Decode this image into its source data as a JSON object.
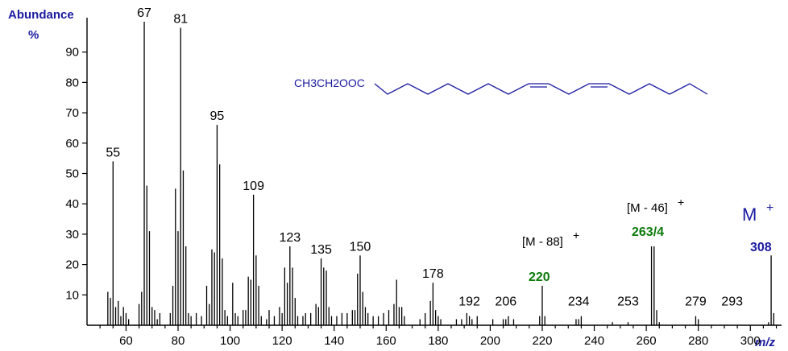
{
  "chart_data": {
    "type": "bar",
    "ylabel_line1": "Abundance",
    "ylabel_line2": "%",
    "xlabel": "m/z",
    "xlim": [
      45,
      312
    ],
    "ylim": [
      0,
      100
    ],
    "x_ticks": [
      60,
      80,
      100,
      120,
      140,
      160,
      180,
      200,
      220,
      240,
      260,
      280,
      300
    ],
    "y_ticks": [
      10,
      20,
      30,
      40,
      50,
      60,
      70,
      80,
      90
    ],
    "peaks": [
      {
        "mz": 53,
        "y": 11
      },
      {
        "mz": 54,
        "y": 9
      },
      {
        "mz": 55,
        "y": 54
      },
      {
        "mz": 56,
        "y": 6
      },
      {
        "mz": 57,
        "y": 8
      },
      {
        "mz": 58,
        "y": 3
      },
      {
        "mz": 59,
        "y": 6
      },
      {
        "mz": 60,
        "y": 4
      },
      {
        "mz": 61,
        "y": 2
      },
      {
        "mz": 65,
        "y": 7
      },
      {
        "mz": 66,
        "y": 11
      },
      {
        "mz": 67,
        "y": 100
      },
      {
        "mz": 68,
        "y": 46
      },
      {
        "mz": 69,
        "y": 31
      },
      {
        "mz": 70,
        "y": 6
      },
      {
        "mz": 71,
        "y": 5
      },
      {
        "mz": 72,
        "y": 2
      },
      {
        "mz": 73,
        "y": 4
      },
      {
        "mz": 77,
        "y": 4
      },
      {
        "mz": 78,
        "y": 13
      },
      {
        "mz": 79,
        "y": 45
      },
      {
        "mz": 80,
        "y": 31
      },
      {
        "mz": 81,
        "y": 98
      },
      {
        "mz": 82,
        "y": 51
      },
      {
        "mz": 83,
        "y": 26
      },
      {
        "mz": 84,
        "y": 4
      },
      {
        "mz": 85,
        "y": 3
      },
      {
        "mz": 87,
        "y": 4
      },
      {
        "mz": 89,
        "y": 3
      },
      {
        "mz": 91,
        "y": 13
      },
      {
        "mz": 92,
        "y": 7
      },
      {
        "mz": 93,
        "y": 25
      },
      {
        "mz": 94,
        "y": 24
      },
      {
        "mz": 95,
        "y": 66
      },
      {
        "mz": 96,
        "y": 53
      },
      {
        "mz": 97,
        "y": 22
      },
      {
        "mz": 98,
        "y": 5
      },
      {
        "mz": 99,
        "y": 3
      },
      {
        "mz": 101,
        "y": 14
      },
      {
        "mz": 102,
        "y": 4
      },
      {
        "mz": 103,
        "y": 3
      },
      {
        "mz": 105,
        "y": 5
      },
      {
        "mz": 106,
        "y": 5
      },
      {
        "mz": 107,
        "y": 16
      },
      {
        "mz": 108,
        "y": 15
      },
      {
        "mz": 109,
        "y": 43
      },
      {
        "mz": 110,
        "y": 23
      },
      {
        "mz": 111,
        "y": 13
      },
      {
        "mz": 112,
        "y": 3
      },
      {
        "mz": 114,
        "y": 2
      },
      {
        "mz": 115,
        "y": 5
      },
      {
        "mz": 117,
        "y": 3
      },
      {
        "mz": 119,
        "y": 6
      },
      {
        "mz": 120,
        "y": 4
      },
      {
        "mz": 121,
        "y": 19
      },
      {
        "mz": 122,
        "y": 14
      },
      {
        "mz": 123,
        "y": 26
      },
      {
        "mz": 124,
        "y": 19
      },
      {
        "mz": 125,
        "y": 9
      },
      {
        "mz": 126,
        "y": 3
      },
      {
        "mz": 128,
        "y": 3
      },
      {
        "mz": 129,
        "y": 4
      },
      {
        "mz": 131,
        "y": 4
      },
      {
        "mz": 133,
        "y": 7
      },
      {
        "mz": 134,
        "y": 6
      },
      {
        "mz": 135,
        "y": 22
      },
      {
        "mz": 136,
        "y": 19
      },
      {
        "mz": 137,
        "y": 18
      },
      {
        "mz": 138,
        "y": 6
      },
      {
        "mz": 139,
        "y": 3
      },
      {
        "mz": 141,
        "y": 3
      },
      {
        "mz": 143,
        "y": 4
      },
      {
        "mz": 145,
        "y": 4
      },
      {
        "mz": 147,
        "y": 5
      },
      {
        "mz": 148,
        "y": 5
      },
      {
        "mz": 149,
        "y": 17
      },
      {
        "mz": 150,
        "y": 23
      },
      {
        "mz": 151,
        "y": 11
      },
      {
        "mz": 152,
        "y": 6
      },
      {
        "mz": 153,
        "y": 4
      },
      {
        "mz": 155,
        "y": 3
      },
      {
        "mz": 157,
        "y": 3
      },
      {
        "mz": 159,
        "y": 4
      },
      {
        "mz": 161,
        "y": 5
      },
      {
        "mz": 163,
        "y": 7
      },
      {
        "mz": 164,
        "y": 15
      },
      {
        "mz": 165,
        "y": 6
      },
      {
        "mz": 166,
        "y": 6
      },
      {
        "mz": 167,
        "y": 3
      },
      {
        "mz": 173,
        "y": 2
      },
      {
        "mz": 175,
        "y": 4
      },
      {
        "mz": 177,
        "y": 8
      },
      {
        "mz": 178,
        "y": 14
      },
      {
        "mz": 179,
        "y": 5
      },
      {
        "mz": 180,
        "y": 3
      },
      {
        "mz": 181,
        "y": 2
      },
      {
        "mz": 187,
        "y": 2
      },
      {
        "mz": 189,
        "y": 2
      },
      {
        "mz": 191,
        "y": 4
      },
      {
        "mz": 192,
        "y": 3
      },
      {
        "mz": 193,
        "y": 2
      },
      {
        "mz": 195,
        "y": 3
      },
      {
        "mz": 201,
        "y": 2
      },
      {
        "mz": 205,
        "y": 2
      },
      {
        "mz": 206,
        "y": 2
      },
      {
        "mz": 207,
        "y": 3
      },
      {
        "mz": 209,
        "y": 2
      },
      {
        "mz": 219,
        "y": 3
      },
      {
        "mz": 220,
        "y": 13
      },
      {
        "mz": 221,
        "y": 3
      },
      {
        "mz": 233,
        "y": 2
      },
      {
        "mz": 234,
        "y": 2
      },
      {
        "mz": 235,
        "y": 3
      },
      {
        "mz": 247,
        "y": 1
      },
      {
        "mz": 253,
        "y": 1
      },
      {
        "mz": 262,
        "y": 26
      },
      {
        "mz": 263,
        "y": 26
      },
      {
        "mz": 264,
        "y": 5
      },
      {
        "mz": 265,
        "y": 1
      },
      {
        "mz": 279,
        "y": 3
      },
      {
        "mz": 280,
        "y": 2
      },
      {
        "mz": 307,
        "y": 1
      },
      {
        "mz": 308,
        "y": 23
      },
      {
        "mz": 309,
        "y": 4
      }
    ],
    "peak_labels": [
      {
        "mz": 55,
        "text": "55"
      },
      {
        "mz": 67,
        "text": "67"
      },
      {
        "mz": 81,
        "text": "81"
      },
      {
        "mz": 95,
        "text": "95"
      },
      {
        "mz": 109,
        "text": "109"
      },
      {
        "mz": 123,
        "text": "123"
      },
      {
        "mz": 135,
        "text": "135"
      },
      {
        "mz": 150,
        "text": "150"
      },
      {
        "mz": 178,
        "text": "178"
      },
      {
        "mz": 192,
        "text": "192"
      },
      {
        "mz": 206,
        "text": "206"
      },
      {
        "mz": 234,
        "text": "234"
      },
      {
        "mz": 253,
        "text": "253"
      },
      {
        "mz": 279,
        "text": "279"
      },
      {
        "mz": 293,
        "text": "293"
      }
    ],
    "annotations": {
      "m88": {
        "text": "[M - 88]",
        "sup": "+",
        "value": "220"
      },
      "m46": {
        "text": "[M - 46]",
        "sup": "+",
        "value": "263/4"
      },
      "mplus": {
        "text": "M",
        "sup": "+",
        "value": "308"
      }
    },
    "structure_label": "CH3CH2OOC",
    "colors": {
      "axis_title": "#1a1aa0",
      "green_label": "#0b7a0b",
      "structure": "#1a1aa0"
    }
  }
}
